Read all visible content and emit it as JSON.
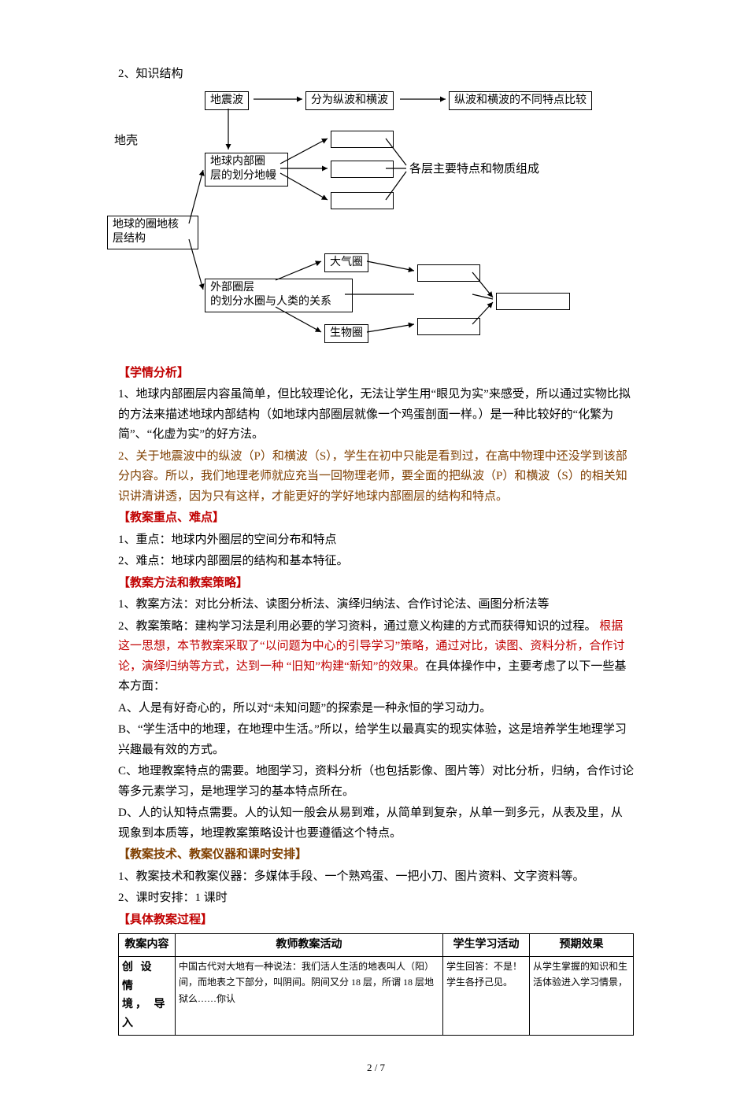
{
  "header": {
    "item2": "2、知识结构",
    "diku": "地壳"
  },
  "flow": {
    "root": "地球的圈地核\n层结构",
    "seismic": "地震波",
    "seismic_split": "分为纵波和横波",
    "seismic_compare": "纵波和横波的不同特点比较",
    "inner": "地球内部圈\n层的划分地幔",
    "inner_feature": "各层主要特点和物质组成",
    "outer": "外部圈层\n的划分水圈与人类的关系",
    "atmo": "大气圈",
    "bio": "生物圈"
  },
  "xueqing": {
    "title": "【学情分析】",
    "p1": "1、地球内部圈层内容虽简单，但比较理论化，无法让学生用“眼见为实”来感受，所以通过实物比拟的方法来描述地球内部结构（如地球内部圈层就像一个鸡蛋剖面一样。）是一种比较好的“化繁为简”、“化虚为实”的好方法。",
    "p2": "2、关于地震波中的纵波（P）和横波（S），学生在初中只能是看到过，在高中物理中还没学到该部分内容。所以，我们地理老师就应充当一回物理老师，要全面的把纵波（P）和横波（S）的相关知识讲清讲透，因为只有这样，才能更好的学好地球内部圈层的结构和特点。"
  },
  "zhongdian": {
    "title": "【教案重点、难点】",
    "p1": "1、重点：地球内外圈层的空间分布和特点",
    "p2": "2、难点：地球内部圈层的结构和基本特征。"
  },
  "fangfa": {
    "title": "【教案方法和教案策略】",
    "p1": "1、教案方法：对比分析法、读图分析法、演绎归纳法、合作讨论法、画图分析法等",
    "p2": "2、教案策略：建构学习法是利用必要的学习资料，通过意义构建的方式而获得知识的过程。",
    "p2red": "根据这一思想，本节教案采取了“以问题为中心的引导学习”策略，通过对比，读图、资料分析，合作讨论，演绎归纳等方式，达到一种 “旧知”构建“新知”的效果。",
    "p2tail": "在具体操作中，主要考虑了以下一些基本方面：",
    "pa": "A、人是有好奇心的，所以对“未知问题”的探索是一种永恒的学习动力。",
    "pb": "B、“学生活中的地理，在地理中生活。”所以，给学生以最真实的现实体验，这是培养学生地理学习兴趣最有效的方式。",
    "pc": "C、地理教案特点的需要。地图学习，资料分析（也包括影像、图片等）对比分析，归纳，合作讨论等多元素学习，是地理学习的基本特点所在。",
    "pd": "D、人的认知特点需要。人的认知一般会从易到难，从简单到复杂，从单一到多元，从表及里，从现象到本质等，地理教案策略设计也要遵循这个特点。"
  },
  "jishu": {
    "title": "【教案技术、教案仪器和课时安排】",
    "p1": "1、教案技术和教案仪器：多媒体手段、一个熟鸡蛋、一把小刀、图片资料、文字资料等。",
    "p2": "2、课时安排：1 课时"
  },
  "guocheng": {
    "title": "【具体教案过程】"
  },
  "table": {
    "headers": [
      "教案内容",
      "教师教案活动",
      "学生学习活动",
      "预期效果"
    ],
    "row1": {
      "c1a": "创 设 情",
      "c1b": "境， 导 入",
      "c2": "中国古代对大地有一种说法：我们活人生活的地表叫人（阳）间，而地表之下部分，叫阴间。阴间又分 18 层，所谓 18 层地狱么……你认",
      "c3a": "学生回答：不是！",
      "c3b": "学生各抒己见。",
      "c4": "从学生掌握的知识和生活体验进入学习情景，"
    }
  },
  "footer": "2 / 7",
  "style": {
    "red": "#c00000",
    "brown": "#7f3f00",
    "black": "#000000"
  }
}
